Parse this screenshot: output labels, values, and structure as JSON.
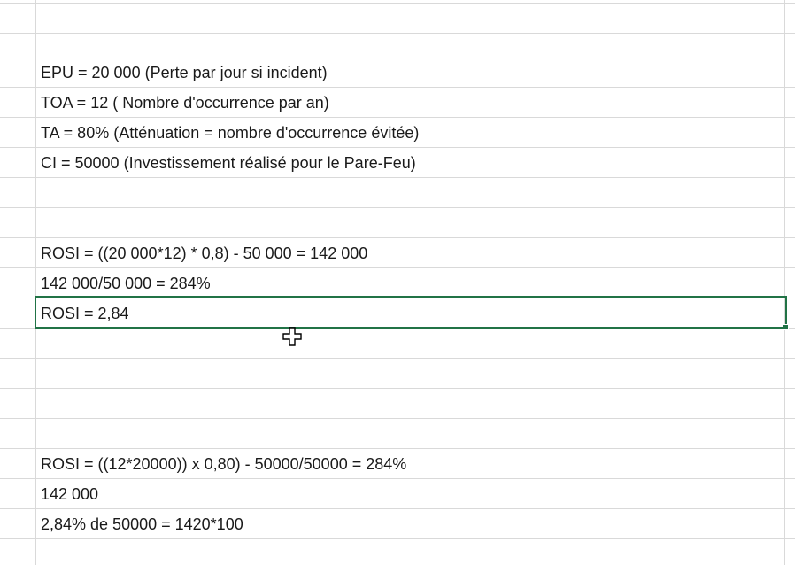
{
  "sheet": {
    "rows": [
      {
        "text": ""
      },
      {
        "text": ""
      },
      {
        "text": "EPU = 20 000 (Perte par jour si incident)"
      },
      {
        "text": "TOA = 12 ( Nombre d'occurrence par an)"
      },
      {
        "text": "TA = 80% (Atténuation = nombre d'occurrence évitée)"
      },
      {
        "text": "CI = 50000 (Investissement réalisé pour le Pare-Feu)"
      },
      {
        "text": ""
      },
      {
        "text": ""
      },
      {
        "text": "ROSI = ((20 000*12) * 0,8) - 50 000 = 142 000"
      },
      {
        "text": "142 000/50 000 = 284%"
      },
      {
        "text": "ROSI = 2,84"
      },
      {
        "text": ""
      },
      {
        "text": ""
      },
      {
        "text": ""
      },
      {
        "text": ""
      },
      {
        "text": "ROSI = ((12*20000)) x 0,80) - 50000/50000 = 284%"
      },
      {
        "text": "142 000"
      },
      {
        "text": "2,84% de 50000 = 1420*100"
      },
      {
        "text": ""
      }
    ],
    "selected_row_index": 10,
    "selection_color": "#217346",
    "grid_color": "#d9d9d9"
  },
  "cursor": {
    "icon": "cell-select-cross-cursor-icon"
  }
}
